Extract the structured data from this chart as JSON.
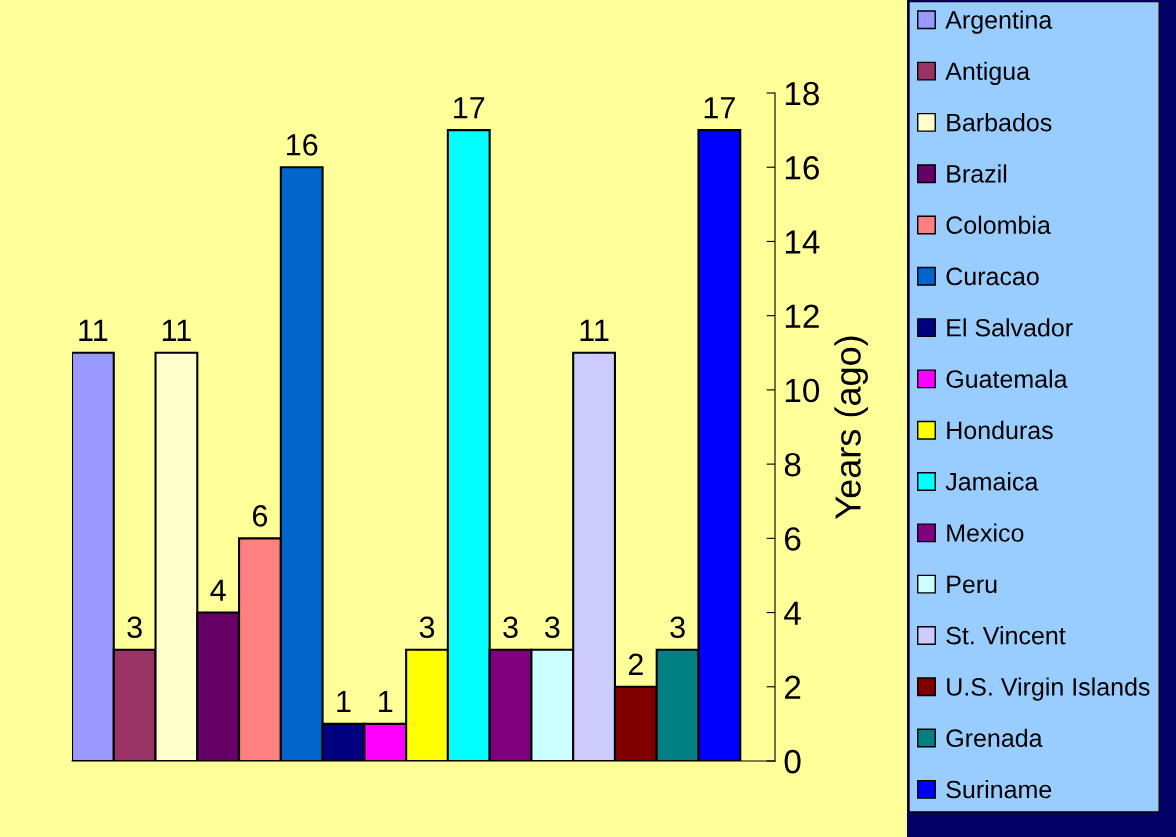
{
  "chart_data": {
    "type": "bar",
    "categories": [
      null
    ],
    "ylabel": "Years (ago)",
    "ylim": [
      0,
      18
    ],
    "yticks": [
      0,
      2,
      4,
      6,
      8,
      10,
      12,
      14,
      16,
      18
    ],
    "data_labels": true,
    "legend": "right",
    "grid": false,
    "series": [
      {
        "name": "Argentina",
        "color": "#9999ff",
        "values": [
          11
        ]
      },
      {
        "name": "Antigua",
        "color": "#993366",
        "values": [
          3
        ]
      },
      {
        "name": "Barbados",
        "color": "#ffffcc",
        "values": [
          11
        ]
      },
      {
        "name": "Brazil",
        "color": "#660066",
        "values": [
          4
        ]
      },
      {
        "name": "Colombia",
        "color": "#ff8080",
        "values": [
          6
        ]
      },
      {
        "name": "Curacao",
        "color": "#0066cc",
        "values": [
          16
        ]
      },
      {
        "name": "El Salvador",
        "color": "#000080",
        "values": [
          1
        ]
      },
      {
        "name": "Guatemala",
        "color": "#ff00ff",
        "values": [
          1
        ]
      },
      {
        "name": "Honduras",
        "color": "#ffff00",
        "values": [
          3
        ]
      },
      {
        "name": "Jamaica",
        "color": "#00ffff",
        "values": [
          17
        ]
      },
      {
        "name": "Mexico",
        "color": "#800080",
        "values": [
          3
        ]
      },
      {
        "name": "Peru",
        "color": "#ccffff",
        "values": [
          3
        ]
      },
      {
        "name": "St. Vincent",
        "color": "#ccccff",
        "values": [
          11
        ]
      },
      {
        "name": "U.S. Virgin Islands",
        "color": "#800000",
        "values": [
          2
        ]
      },
      {
        "name": "Grenada",
        "color": "#008080",
        "values": [
          3
        ]
      },
      {
        "name": "Suriname",
        "color": "#0000ff",
        "values": [
          17
        ]
      }
    ]
  }
}
